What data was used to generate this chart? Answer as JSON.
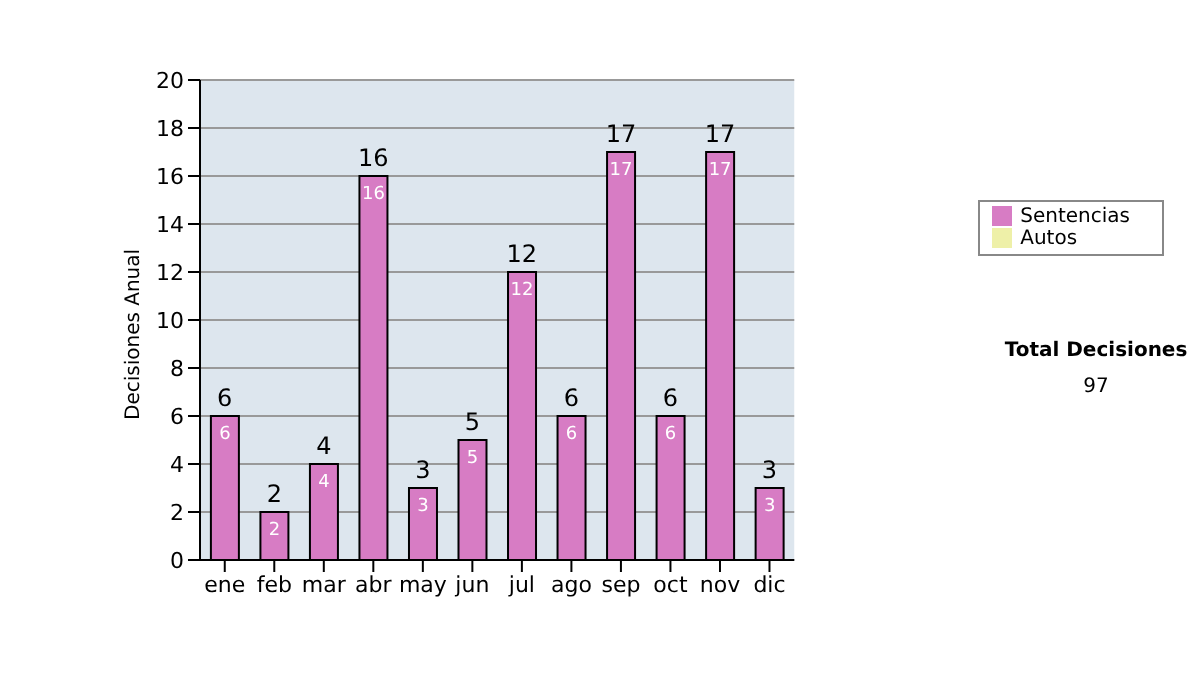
{
  "chart_data": {
    "type": "bar",
    "ylabel": "Decisiones Anual",
    "categories": [
      "ene",
      "feb",
      "mar",
      "abr",
      "may",
      "jun",
      "jul",
      "ago",
      "sep",
      "oct",
      "nov",
      "dic"
    ],
    "series": [
      {
        "name": "Sentencias",
        "color": "#d77cc4",
        "values": [
          6,
          2,
          4,
          16,
          3,
          5,
          12,
          6,
          17,
          6,
          17,
          3
        ],
        "value_labels": [
          "6",
          "2",
          "4",
          "16",
          "3",
          "5",
          "12",
          "6",
          "17",
          "6",
          "17",
          "3"
        ]
      },
      {
        "name": "Autos",
        "color": "#eef0a8",
        "values": [
          0,
          0,
          0,
          0,
          0,
          0,
          0,
          0,
          0,
          0,
          0,
          0
        ]
      }
    ],
    "stacked": true,
    "totals": [
      "6",
      "2",
      "4",
      "16",
      "3",
      "5",
      "12",
      "6",
      "17",
      "6",
      "17",
      "3"
    ],
    "ylim": [
      0,
      20
    ],
    "yticks": [
      0,
      2,
      4,
      6,
      8,
      10,
      12,
      14,
      16,
      18,
      20
    ],
    "grid": "y",
    "legend": "right",
    "annotations": [
      "Total Decisiones",
      "97"
    ]
  }
}
